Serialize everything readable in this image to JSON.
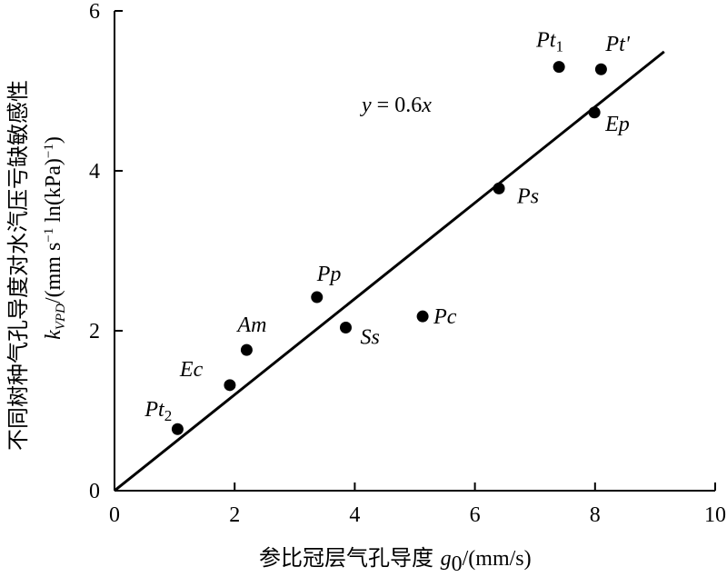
{
  "chart_data": {
    "type": "scatter",
    "title": "",
    "xlabel": "参比冠层气孔导度 g0/(mm/s)",
    "ylabel": "不同树种气孔导度对水汽压亏缺敏感性 kVPD/(mm s−1 ln(kPa)−1)",
    "xlim": [
      0,
      10
    ],
    "ylim": [
      0,
      6
    ],
    "x_ticks": [
      "0",
      "2",
      "4",
      "6",
      "8",
      "10"
    ],
    "y_ticks": [
      "0",
      "2",
      "4",
      "6"
    ],
    "grid": false,
    "points": [
      {
        "label": "Pt2",
        "x": 1.05,
        "y": 0.77
      },
      {
        "label": "Ec",
        "x": 1.92,
        "y": 1.32
      },
      {
        "label": "Am",
        "x": 2.2,
        "y": 1.76
      },
      {
        "label": "Pp",
        "x": 3.37,
        "y": 2.42
      },
      {
        "label": "Ss",
        "x": 3.85,
        "y": 2.04
      },
      {
        "label": "Pc",
        "x": 5.13,
        "y": 2.18
      },
      {
        "label": "Ps",
        "x": 6.4,
        "y": 3.78
      },
      {
        "label": "Ep",
        "x": 7.99,
        "y": 4.73
      },
      {
        "label": "Pt1",
        "x": 7.4,
        "y": 5.3
      },
      {
        "label": "Pt'",
        "x": 8.1,
        "y": 5.27
      }
    ],
    "fit_line": {
      "equation": "y = 0.6x",
      "slope": 0.6,
      "x_range": [
        0,
        9.15
      ]
    }
  }
}
